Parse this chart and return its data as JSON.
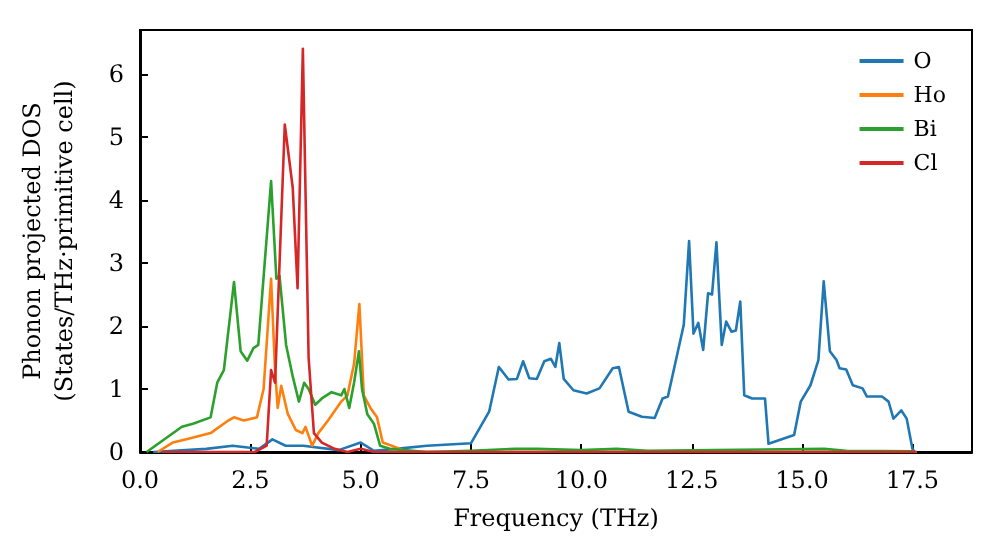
{
  "chart_data": {
    "type": "line",
    "xlabel": "Frequency (THz)",
    "ylabel": "Phonon projected DOS\n(States/THz·primitive cell)",
    "xlim": [
      0,
      18.85
    ],
    "ylim": [
      0,
      6.7
    ],
    "xticks": [
      {
        "value": 0,
        "label": "0.0"
      },
      {
        "value": 2.5,
        "label": "2.5"
      },
      {
        "value": 5,
        "label": "5.0"
      },
      {
        "value": 7.5,
        "label": "7.5"
      },
      {
        "value": 10,
        "label": "10.0"
      },
      {
        "value": 12.5,
        "label": "12.5"
      },
      {
        "value": 15,
        "label": "15.0"
      },
      {
        "value": 17.5,
        "label": "17.5"
      }
    ],
    "yticks": [
      0,
      1,
      2,
      3,
      4,
      5,
      6
    ],
    "grid": false,
    "legend": "top right",
    "marker": "none",
    "line_style": "solid",
    "series": [
      {
        "name": "O",
        "color": "#1f77b4",
        "x": [
          0.3,
          1.5,
          2.1,
          2.7,
          3.0,
          3.3,
          3.7,
          4.5,
          5.0,
          5.3,
          5.8,
          6.5,
          7.5,
          7.91,
          8.13,
          8.35,
          8.54,
          8.68,
          8.82,
          8.99,
          9.16,
          9.31,
          9.41,
          9.5,
          9.6,
          9.82,
          10.12,
          10.41,
          10.71,
          10.85,
          11.07,
          11.37,
          11.66,
          11.84,
          11.96,
          12.32,
          12.44,
          12.54,
          12.65,
          12.76,
          12.87,
          12.96,
          13.06,
          13.18,
          13.28,
          13.4,
          13.5,
          13.6,
          13.69,
          13.87,
          14.16,
          14.24,
          14.82,
          14.97,
          15.19,
          15.37,
          15.49,
          15.63,
          15.78,
          15.85,
          16.0,
          16.15,
          16.37,
          16.47,
          16.81,
          16.96,
          17.07,
          17.25,
          17.37,
          17.5,
          17.55
        ],
        "values": [
          0,
          0.05,
          0.1,
          0.05,
          0.2,
          0.1,
          0.1,
          0.03,
          0.15,
          0.02,
          0.05,
          0.1,
          0.14,
          0.64,
          1.35,
          1.15,
          1.16,
          1.44,
          1.17,
          1.16,
          1.44,
          1.48,
          1.35,
          1.73,
          1.16,
          0.98,
          0.93,
          1.01,
          1.33,
          1.35,
          0.64,
          0.56,
          0.54,
          0.85,
          0.88,
          2.02,
          3.35,
          1.88,
          2.05,
          1.62,
          2.52,
          2.5,
          3.33,
          1.7,
          2.07,
          1.91,
          1.93,
          2.39,
          0.9,
          0.85,
          0.85,
          0.13,
          0.27,
          0.8,
          1.06,
          1.46,
          2.71,
          1.6,
          1.46,
          1.33,
          1.31,
          1.06,
          1.01,
          0.88,
          0.88,
          0.8,
          0.53,
          0.66,
          0.53,
          0.05,
          0
        ]
      },
      {
        "name": "Ho",
        "color": "#ff7f0e",
        "x": [
          0.4,
          0.74,
          1.03,
          1.6,
          2.0,
          2.13,
          2.35,
          2.65,
          2.8,
          2.97,
          3.06,
          3.12,
          3.2,
          3.35,
          3.53,
          3.68,
          3.75,
          3.9,
          4.04,
          4.26,
          4.56,
          4.7,
          4.85,
          4.97,
          5.07,
          5.22,
          5.37,
          5.5,
          5.9,
          6.0,
          17.6
        ],
        "values": [
          0,
          0.15,
          0.2,
          0.3,
          0.5,
          0.55,
          0.5,
          0.55,
          1.0,
          2.75,
          1.3,
          0.7,
          1.05,
          0.6,
          0.35,
          0.3,
          0.4,
          0.1,
          0.3,
          0.5,
          0.8,
          0.9,
          1.4,
          2.35,
          0.9,
          0.7,
          0.55,
          0.15,
          0.05,
          0,
          0
        ]
      },
      {
        "name": "Bi",
        "color": "#2ca02c",
        "x": [
          0.15,
          0.95,
          1.2,
          1.6,
          1.75,
          1.9,
          2.13,
          2.28,
          2.43,
          2.57,
          2.68,
          2.97,
          3.09,
          3.16,
          3.31,
          3.46,
          3.6,
          3.72,
          3.82,
          3.97,
          4.12,
          4.34,
          4.56,
          4.63,
          4.74,
          4.85,
          4.96,
          5.03,
          5.15,
          5.3,
          5.44,
          5.66,
          6.5,
          7.5,
          8.5,
          9.0,
          10.0,
          10.8,
          11.5,
          13.0,
          15.5,
          16.0,
          17.5
        ],
        "values": [
          0,
          0.4,
          0.45,
          0.55,
          1.1,
          1.3,
          2.7,
          1.6,
          1.45,
          1.65,
          1.7,
          4.3,
          2.75,
          2.8,
          1.7,
          1.2,
          0.8,
          1.1,
          1.0,
          0.75,
          0.85,
          0.95,
          0.9,
          1.0,
          0.7,
          1.1,
          1.6,
          1.0,
          0.6,
          0.45,
          0.1,
          0.05,
          0,
          0.02,
          0.05,
          0.05,
          0.03,
          0.05,
          0.02,
          0.03,
          0.05,
          0.02,
          0.01
        ]
      },
      {
        "name": "Cl",
        "color": "#d62728",
        "x": [
          0.5,
          2.6,
          2.87,
          2.97,
          3.06,
          3.28,
          3.46,
          3.57,
          3.69,
          3.82,
          3.94,
          4.12,
          4.41,
          4.7,
          5.0,
          5.3,
          17.6
        ],
        "values": [
          0,
          0,
          0.1,
          1.3,
          1.1,
          5.2,
          4.2,
          2.6,
          6.4,
          1.5,
          0.3,
          0.15,
          0.05,
          0,
          0.05,
          0,
          0
        ]
      }
    ]
  }
}
